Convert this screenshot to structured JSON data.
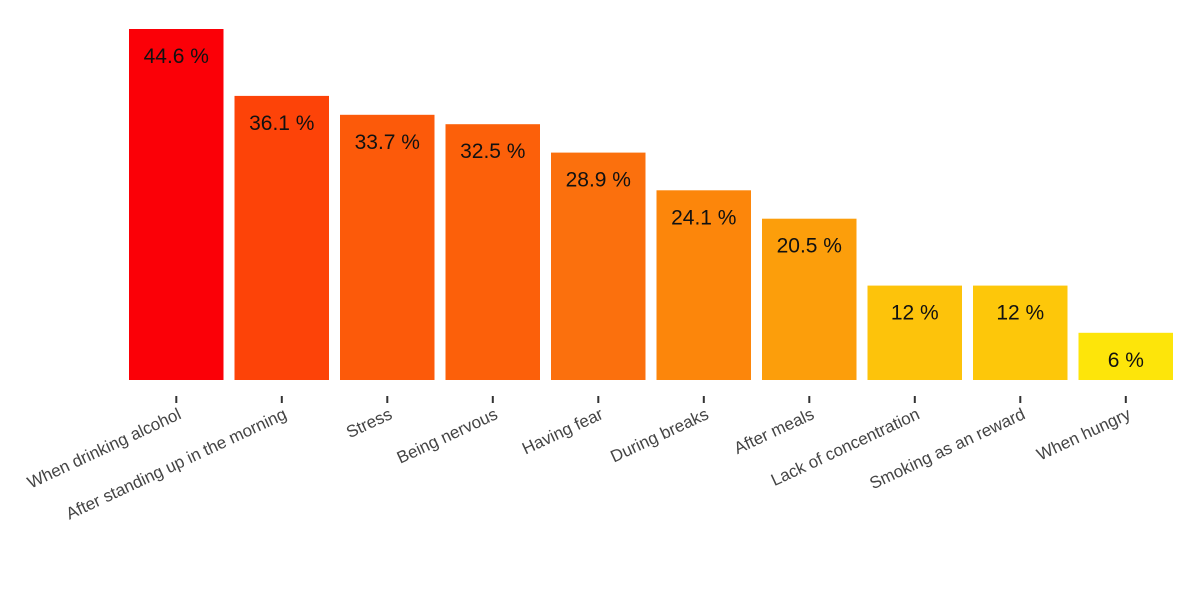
{
  "chart_data": {
    "type": "bar",
    "title": "",
    "xlabel": "",
    "ylabel": "",
    "categories": [
      "When drinking alcohol",
      "After standing up in the morning",
      "Stress",
      "Being nervous",
      "Having fear",
      "During breaks",
      "After meals",
      "Lack of concentration",
      "Smoking as an reward",
      "When hungry"
    ],
    "values": [
      44.6,
      36.1,
      33.7,
      32.5,
      28.9,
      24.1,
      20.5,
      12,
      12,
      6
    ],
    "value_labels": [
      "44.6 %",
      "36.1 %",
      "33.7 %",
      "32.5 %",
      "28.9 %",
      "24.1 %",
      "20.5 %",
      "12 %",
      "12 %",
      "6 %"
    ],
    "colors": [
      "#fb0007",
      "#fd4308",
      "#fc5a0a",
      "#fc600a",
      "#fb700d",
      "#fc860b",
      "#fc9e0b",
      "#fdc30b",
      "#fdc70a",
      "#fde50a"
    ],
    "ylim": [
      0,
      44.6
    ],
    "grid": false,
    "legend": "none"
  }
}
